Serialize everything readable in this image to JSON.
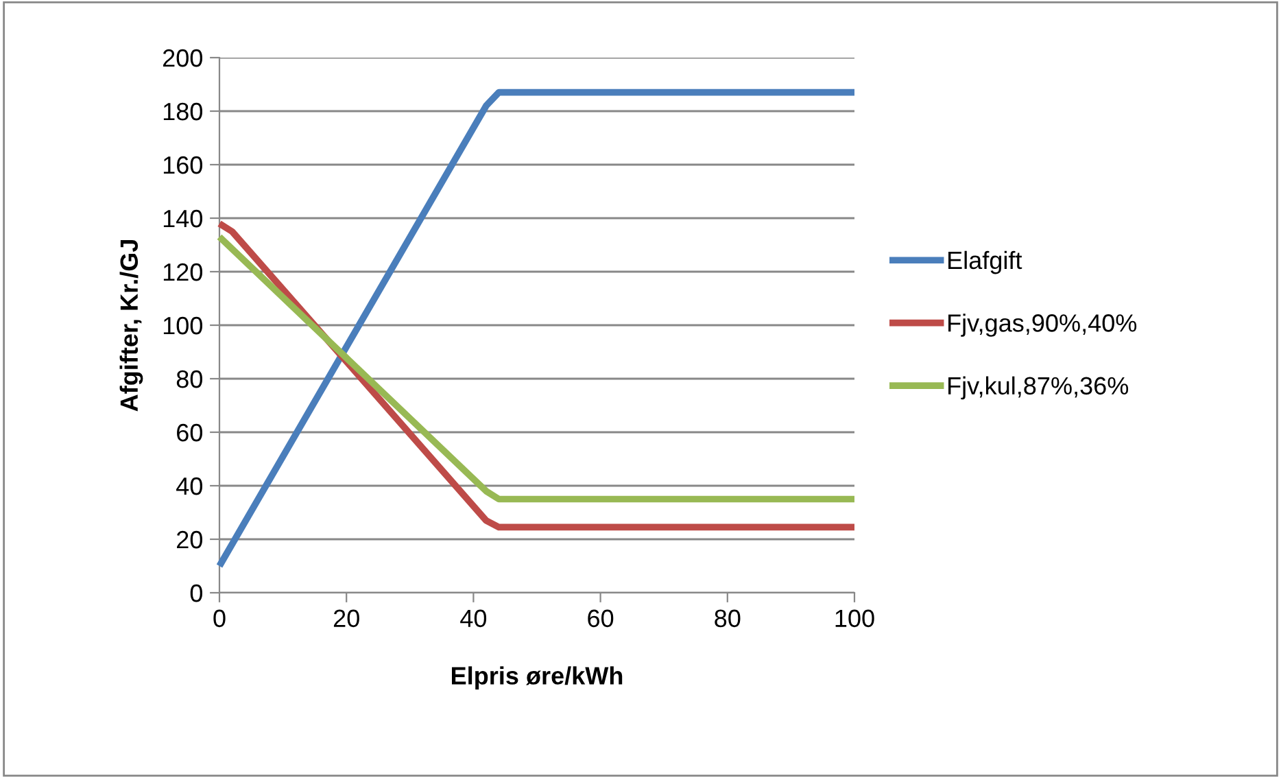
{
  "chart_data": {
    "type": "line",
    "xlabel": "Elpris øre/kWh",
    "ylabel": "Afgifter, Kr./GJ",
    "xlim": [
      0,
      100
    ],
    "xticks": [
      0,
      20,
      40,
      60,
      80,
      100
    ],
    "ylim": [
      0,
      200
    ],
    "yticks": [
      0,
      20,
      40,
      60,
      80,
      100,
      120,
      140,
      160,
      180,
      200
    ],
    "grid": "y",
    "legend": "right",
    "marker": "none",
    "line_style": "solid",
    "series": [
      {
        "name": "Elafgift",
        "color": "#4a7ebb",
        "x": [
          0,
          42,
          44,
          100
        ],
        "values": [
          10,
          182,
          187,
          187
        ]
      },
      {
        "name": "Fjv,gas,90%,40%",
        "color": "#be4b48",
        "x": [
          0,
          2,
          42,
          44,
          100
        ],
        "values": [
          138,
          135,
          27,
          24.5,
          24.5
        ]
      },
      {
        "name": "Fjv,kul,87%,36%",
        "color": "#98b954",
        "x": [
          0,
          42,
          44,
          100
        ],
        "values": [
          133,
          38,
          35,
          35
        ]
      }
    ]
  }
}
